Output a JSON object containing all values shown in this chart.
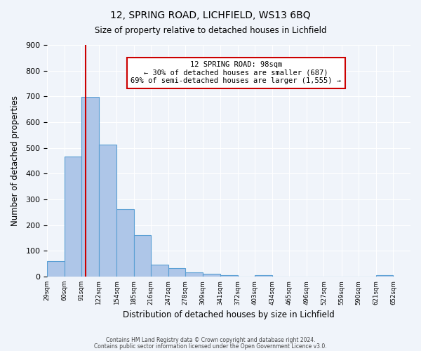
{
  "title1": "12, SPRING ROAD, LICHFIELD, WS13 6BQ",
  "title2": "Size of property relative to detached houses in Lichfield",
  "xlabel": "Distribution of detached houses by size in Lichfield",
  "ylabel": "Number of detached properties",
  "bar_edges": [
    29,
    60,
    91,
    122,
    154,
    185,
    216,
    247,
    278,
    309,
    341,
    372,
    403,
    434,
    465,
    496,
    527,
    559,
    590,
    621,
    652
  ],
  "bar_heights": [
    60,
    467,
    697,
    513,
    263,
    160,
    47,
    33,
    15,
    10,
    5,
    0,
    5,
    0,
    0,
    0,
    0,
    0,
    0,
    5
  ],
  "tick_labels": [
    "29sqm",
    "60sqm",
    "91sqm",
    "122sqm",
    "154sqm",
    "185sqm",
    "216sqm",
    "247sqm",
    "278sqm",
    "309sqm",
    "341sqm",
    "372sqm",
    "403sqm",
    "434sqm",
    "465sqm",
    "496sqm",
    "527sqm",
    "559sqm",
    "590sqm",
    "621sqm",
    "652sqm"
  ],
  "bar_color": "#aec6e8",
  "bar_edge_color": "#5a9fd4",
  "vline_x": 98,
  "vline_color": "#cc0000",
  "ylim": [
    0,
    900
  ],
  "yticks": [
    0,
    100,
    200,
    300,
    400,
    500,
    600,
    700,
    800,
    900
  ],
  "annotation_title": "12 SPRING ROAD: 98sqm",
  "annotation_line1": "← 30% of detached houses are smaller (687)",
  "annotation_line2": "69% of semi-detached houses are larger (1,555) →",
  "annotation_box_color": "#cc0000",
  "footer1": "Contains HM Land Registry data © Crown copyright and database right 2024.",
  "footer2": "Contains public sector information licensed under the Open Government Licence v3.0.",
  "bg_color": "#f0f4fa",
  "grid_color": "#ffffff"
}
